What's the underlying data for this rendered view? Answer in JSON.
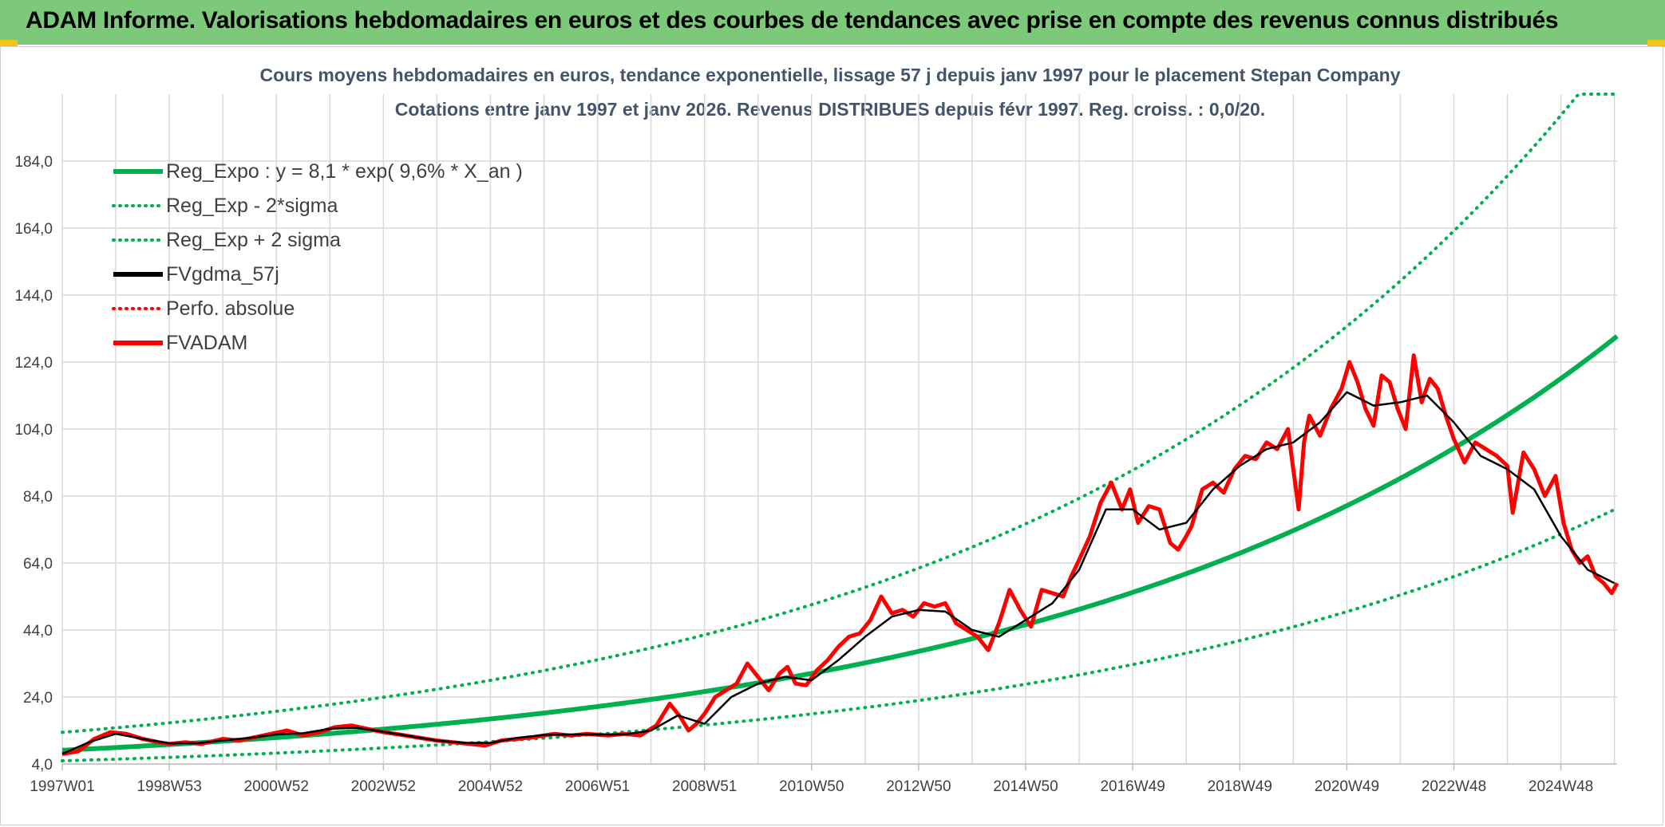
{
  "header": {
    "title": "ADAM Informe. Valorisations hebdomadaires en euros et des courbes de tendances avec prise en compte des revenus connus distribués"
  },
  "colors": {
    "banner": "#7dc97a",
    "accent": "#f0c419",
    "reg_green": "#00b050",
    "price_red": "#ff0000",
    "smooth_black": "#000000"
  },
  "chart_data": {
    "type": "line",
    "title": [
      "Cours moyens hebdomadaires en euros, tendance exponentielle, lissage 57 j depuis janv 1997 pour le placement Stepan Company",
      "Cotations entre janv 1997 et janv 2026. Revenus DISTRIBUES depuis févr 1997. Reg. croiss. : 0,0/20."
    ],
    "xlabel": "",
    "ylabel": "",
    "xlim": [
      1997.0,
      2026.05
    ],
    "ylim": [
      4.0,
      204.0
    ],
    "y_ticks": [
      4.0,
      24.0,
      44.0,
      64.0,
      84.0,
      104.0,
      124.0,
      144.0,
      164.0,
      184.0
    ],
    "y_tick_labels": [
      "4,0",
      "24,0",
      "44,0",
      "64,0",
      "84,0",
      "104,0",
      "124,0",
      "144,0",
      "164,0",
      "184,0"
    ],
    "x_ticks": [
      1997.0,
      1999.0,
      2001.0,
      2003.0,
      2005.0,
      2007.0,
      2009.0,
      2011.0,
      2013.0,
      2015.0,
      2017.0,
      2019.0,
      2021.0,
      2023.0,
      2025.0
    ],
    "x_tick_labels": [
      "1997W01",
      "1998W53",
      "2000W52",
      "2002W52",
      "2004W52",
      "2006W51",
      "2008W51",
      "2010W50",
      "2012W50",
      "2014W50",
      "2016W49",
      "2018W49",
      "2020W49",
      "2022W48",
      "2024W48"
    ],
    "legend_position": "top-left",
    "legend": [
      {
        "name": "Reg_Expo : y = 8,1 * exp( 9,6% *  X_an )",
        "style": "solid",
        "color": "#00b050"
      },
      {
        "name": "Reg_Exp - 2*sigma",
        "style": "dotted",
        "color": "#00b050"
      },
      {
        "name": "Reg_Exp + 2 sigma",
        "style": "dotted",
        "color": "#00b050"
      },
      {
        "name": "FVgdma_57j",
        "style": "solid",
        "color": "#000000"
      },
      {
        "name": "Perfo. absolue",
        "style": "dotted",
        "color": "#ff0000"
      },
      {
        "name": "FVADAM",
        "style": "solid",
        "color": "#ff0000"
      }
    ],
    "regression": {
      "a": 8.1,
      "rate": 0.096,
      "x0": 1997.0,
      "lower_factor": 0.61,
      "upper_factor": 1.66,
      "upper_cap": 204.0
    },
    "series": [
      {
        "name": "FVADAM",
        "x": [
          1997.0,
          1997.3,
          1997.6,
          1997.9,
          1998.2,
          1998.5,
          1998.8,
          1999.0,
          1999.3,
          1999.6,
          2000.0,
          2000.3,
          2000.6,
          2000.9,
          2001.2,
          2001.5,
          2001.8,
          2002.1,
          2002.4,
          2002.7,
          2003.0,
          2003.3,
          2003.6,
          2004.0,
          2004.3,
          2004.6,
          2004.9,
          2005.2,
          2005.5,
          2005.8,
          2006.2,
          2006.5,
          2006.8,
          2007.2,
          2007.5,
          2007.8,
          2008.1,
          2008.35,
          2008.55,
          2008.7,
          2008.85,
          2009.0,
          2009.2,
          2009.4,
          2009.6,
          2009.8,
          2010.0,
          2010.2,
          2010.4,
          2010.55,
          2010.7,
          2010.9,
          2011.1,
          2011.3,
          2011.5,
          2011.7,
          2011.9,
          2012.1,
          2012.3,
          2012.5,
          2012.7,
          2012.9,
          2013.1,
          2013.3,
          2013.5,
          2013.7,
          2013.9,
          2014.1,
          2014.3,
          2014.5,
          2014.7,
          2014.9,
          2015.1,
          2015.3,
          2015.5,
          2015.7,
          2015.85,
          2016.0,
          2016.2,
          2016.4,
          2016.6,
          2016.8,
          2016.95,
          2017.1,
          2017.3,
          2017.5,
          2017.7,
          2017.85,
          2018.0,
          2018.1,
          2018.3,
          2018.5,
          2018.7,
          2018.9,
          2019.1,
          2019.3,
          2019.5,
          2019.7,
          2019.9,
          2020.1,
          2020.2,
          2020.3,
          2020.5,
          2020.7,
          2020.9,
          2021.05,
          2021.2,
          2021.35,
          2021.5,
          2021.65,
          2021.8,
          2021.95,
          2022.1,
          2022.25,
          2022.4,
          2022.55,
          2022.7,
          2022.85,
          2023.0,
          2023.2,
          2023.4,
          2023.6,
          2023.8,
          2024.0,
          2024.1,
          2024.3,
          2024.5,
          2024.7,
          2024.9,
          2025.05,
          2025.2,
          2025.35,
          2025.5,
          2025.65,
          2025.8,
          2025.95,
          2026.05
        ],
        "values": [
          7.0,
          7.8,
          11.5,
          13.5,
          13.0,
          11.5,
          10.5,
          10.0,
          10.5,
          10.0,
          11.5,
          11.0,
          12.0,
          13.0,
          14.0,
          12.5,
          13.5,
          15.0,
          15.5,
          14.5,
          13.5,
          12.8,
          12.0,
          11.0,
          10.5,
          10.0,
          9.5,
          11.0,
          11.5,
          12.0,
          13.0,
          12.5,
          13.0,
          12.5,
          13.0,
          12.5,
          15.5,
          22.0,
          18.0,
          14.0,
          16.0,
          19.0,
          24.0,
          26.0,
          28.0,
          34.0,
          30.0,
          26.0,
          31.0,
          33.0,
          28.0,
          27.5,
          32.0,
          35.0,
          39.0,
          42.0,
          43.0,
          47.0,
          54.0,
          49.0,
          50.0,
          48.0,
          52.0,
          51.0,
          52.0,
          46.0,
          44.0,
          42.0,
          38.0,
          46.0,
          56.0,
          50.0,
          45.0,
          56.0,
          55.0,
          54.0,
          60.0,
          65.0,
          72.0,
          82.0,
          88.0,
          80.0,
          86.0,
          76.0,
          81.0,
          80.0,
          70.0,
          68.0,
          72.0,
          75.0,
          86.0,
          88.0,
          85.0,
          92.0,
          96.0,
          95.0,
          100.0,
          98.0,
          104.0,
          80.0,
          100.0,
          108.0,
          102.0,
          110.0,
          116.0,
          124.0,
          118.0,
          110.0,
          105.0,
          120.0,
          118.0,
          110.0,
          104.0,
          126.0,
          112.0,
          119.0,
          116.0,
          108.0,
          101.0,
          94.0,
          100.0,
          98.0,
          96.0,
          93.0,
          79.0,
          97.0,
          92.0,
          84.0,
          90.0,
          76.0,
          68.0,
          64.0,
          66.0,
          60.0,
          58.0,
          55.0,
          58.0
        ]
      },
      {
        "name": "FVgdma_57j",
        "x": [
          1997.0,
          1997.5,
          1998.0,
          1998.5,
          1999.0,
          1999.5,
          2000.0,
          2000.5,
          2001.0,
          2001.5,
          2002.0,
          2002.5,
          2003.0,
          2003.5,
          2004.0,
          2004.5,
          2005.0,
          2005.5,
          2006.0,
          2006.5,
          2007.0,
          2007.5,
          2008.0,
          2008.5,
          2009.0,
          2009.5,
          2010.0,
          2010.5,
          2011.0,
          2011.5,
          2012.0,
          2012.5,
          2013.0,
          2013.5,
          2014.0,
          2014.5,
          2015.0,
          2015.5,
          2016.0,
          2016.5,
          2017.0,
          2017.5,
          2018.0,
          2018.5,
          2019.0,
          2019.5,
          2020.0,
          2020.5,
          2021.0,
          2021.5,
          2022.0,
          2022.5,
          2023.0,
          2023.5,
          2024.0,
          2024.5,
          2025.0,
          2025.5,
          2026.0
        ],
        "values": [
          7.0,
          10.5,
          13.0,
          11.5,
          10.2,
          10.2,
          11.0,
          11.8,
          12.8,
          13.2,
          14.5,
          14.8,
          13.6,
          12.3,
          11.0,
          10.3,
          10.3,
          11.8,
          12.7,
          12.8,
          12.8,
          12.8,
          14.0,
          18.5,
          16.0,
          24.0,
          28.0,
          30.0,
          29.0,
          35.0,
          42.0,
          48.0,
          50.0,
          49.5,
          44.0,
          42.0,
          47.0,
          52.0,
          62.0,
          80.0,
          80.0,
          74.0,
          76.0,
          86.0,
          93.0,
          98.0,
          100.0,
          106.0,
          115.0,
          111.0,
          112.0,
          114.0,
          106.0,
          96.0,
          92.0,
          86.0,
          72.0,
          62.0,
          58.0
        ]
      }
    ]
  }
}
